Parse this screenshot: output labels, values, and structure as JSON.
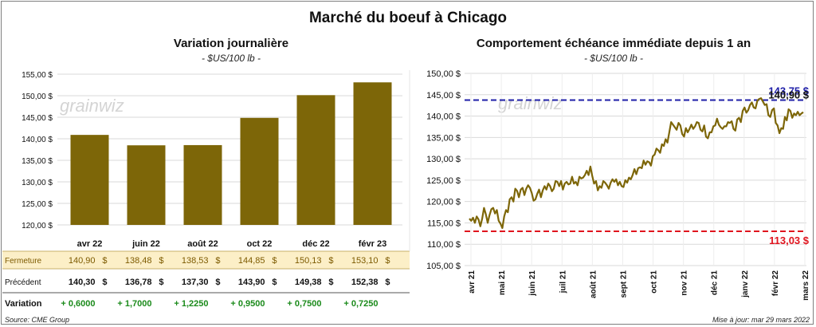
{
  "title": "Marché du boeuf à Chicago",
  "footer": {
    "source": "Source: CME Group",
    "updated": "Mise à jour: mar 29 mars 2022"
  },
  "watermark": "grainwiz",
  "colors": {
    "bar": "#7d6608",
    "line": "#7d6608",
    "high": "#1f1fa8",
    "low": "#e0141e",
    "close_band": "#fcefc7",
    "positive": "#1a8a1a"
  },
  "chart_data": [
    {
      "type": "bar",
      "title": "Variation journalière",
      "subtitle": "- $US/100 lb -",
      "categories": [
        "avr 22",
        "juin 22",
        "août 22",
        "oct 22",
        "déc 22",
        "févr 23"
      ],
      "values": [
        140.9,
        138.48,
        138.53,
        144.85,
        150.13,
        153.1
      ],
      "ylim": [
        120,
        155
      ],
      "yticks": [
        "120,00 $",
        "125,00 $",
        "130,00 $",
        "135,00 $",
        "140,00 $",
        "145,00 $",
        "150,00 $",
        "155,00 $"
      ],
      "grid": true,
      "table": {
        "rows": [
          {
            "label": "Fermeture",
            "values": [
              "140,90",
              "138,48",
              "138,53",
              "144,85",
              "150,13",
              "153,10"
            ],
            "suffix": "$"
          },
          {
            "label": "Précédent",
            "values": [
              "140,30",
              "136,78",
              "137,30",
              "143,90",
              "149,38",
              "152,38"
            ],
            "suffix": "$"
          },
          {
            "label": "Variation",
            "values": [
              "+ 0,6000",
              "+ 1,7000",
              "+ 1,2250",
              "+ 0,9500",
              "+ 0,7500",
              "+ 0,7250"
            ]
          }
        ]
      }
    },
    {
      "type": "line",
      "title": "Comportement  échéance immédiate depuis 1 an",
      "subtitle": "- $US/100 lb -",
      "ylim": [
        105,
        150
      ],
      "yticks": [
        "105,00 $",
        "110,00 $",
        "115,00 $",
        "120,00 $",
        "125,00 $",
        "130,00 $",
        "135,00 $",
        "140,00 $",
        "145,00 $",
        "150,00 $"
      ],
      "xticks": [
        "avr 21",
        "mai 21",
        "juin 21",
        "juil 21",
        "août 21",
        "sept 21",
        "oct 21",
        "nov 21",
        "déc 21",
        "janv 22",
        "févr 22",
        "mars 22"
      ],
      "grid": true,
      "series": [
        {
          "values": [
            116,
            115.5,
            116.2,
            115,
            116.5,
            115.8,
            114.2,
            116,
            118.5,
            117,
            115,
            116.8,
            118.2,
            118.5,
            117.2,
            118,
            115.5,
            114.8,
            113.8,
            116.5,
            118,
            117.5,
            120.5,
            121,
            120,
            123,
            122.5,
            121,
            122.8,
            123.2,
            121.5,
            123,
            123.8,
            123.2,
            122,
            120.2,
            120.5,
            121.8,
            122.8,
            121,
            122.6,
            123.6,
            122.8,
            124.2,
            123.6,
            122.4,
            123,
            124.8,
            124.6,
            123.6,
            124.8,
            122.8,
            124.2,
            124.6,
            124,
            124.2,
            125.8,
            124.2,
            124.6,
            123.8,
            125.8,
            125.4,
            125.6,
            126.2,
            127.2,
            126.2,
            128.2,
            126,
            124.2,
            124.8,
            122.6,
            123.6,
            123.2,
            124.8,
            124.4,
            123.8,
            123,
            124.4,
            125.2,
            124.6,
            125.2,
            123.8,
            124.6,
            123.6,
            123.4,
            125,
            124.4,
            125.6,
            125.2,
            126.2,
            127.6,
            126.4,
            127.8,
            128,
            127.8,
            129.6,
            128.6,
            129.4,
            129.2,
            128.4,
            130.6,
            131,
            132.4,
            132,
            131.4,
            133.4,
            133,
            134.6,
            133.8,
            136.2,
            138.6,
            138,
            137.4,
            136.8,
            138.4,
            137.8,
            135.8,
            135.2,
            137.2,
            136.2,
            137,
            138,
            137,
            137.6,
            138.6,
            138.4,
            136.8,
            136.4,
            137.8,
            135.2,
            134.8,
            136.2,
            136.2,
            137.6,
            137.8,
            139.4,
            138,
            137.4,
            137,
            137.6,
            137.6,
            138.6,
            138.4,
            138.8,
            137,
            136.6,
            139.2,
            139.6,
            138.6,
            141.2,
            142,
            140.8,
            141.4,
            142.6,
            143.2,
            142,
            141.8,
            143.6,
            144,
            144.2,
            143.4,
            142.6,
            142.8,
            140.2,
            139.8,
            141.4,
            141.8,
            138.4,
            137.8,
            136,
            137.2,
            137,
            139.8,
            139,
            141.6,
            141.2,
            139.6,
            140.6,
            140.2,
            141,
            140.2,
            140.6,
            140.9
          ]
        }
      ],
      "reference_lines": [
        {
          "label": "143,75 $",
          "value": 143.75,
          "color": "#1f1fa8"
        },
        {
          "label": "113,03 $",
          "value": 113.03,
          "color": "#e0141e"
        }
      ],
      "last_label": "140,90 $"
    }
  ]
}
